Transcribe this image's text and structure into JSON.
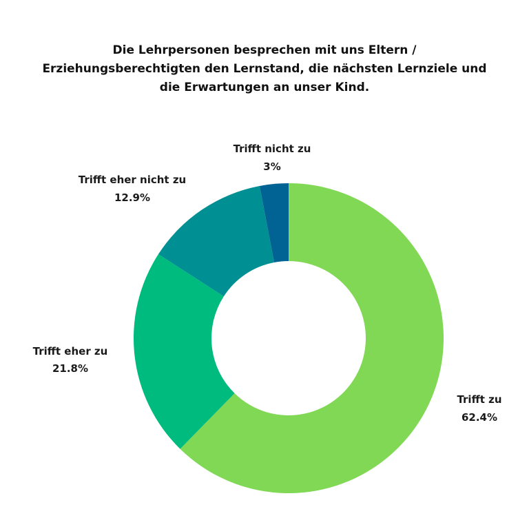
{
  "chart_data": {
    "type": "pie",
    "variant": "donut",
    "title_lines": [
      "Die Lehrpersonen besprechen mit uns Eltern /",
      "Erziehungsberechtigten den Lernstand, die nächsten Lernziele und",
      "die Erwartungen an unser Kind."
    ],
    "slices": [
      {
        "label": "Trifft zu",
        "value": 62.4,
        "value_label": "62.4%",
        "color": "#80d855"
      },
      {
        "label": "Trifft eher zu",
        "value": 21.8,
        "value_label": "21.8%",
        "color": "#00bb7e"
      },
      {
        "label": "Trifft eher nicht zu",
        "value": 12.9,
        "value_label": "12.9%",
        "color": "#009093"
      },
      {
        "label": "Trifft nicht zu",
        "value": 3.0,
        "value_label": "3%",
        "color": "#006394"
      }
    ],
    "start_angle_deg": 0,
    "direction": "clockwise",
    "legend": "none",
    "grid": false
  }
}
